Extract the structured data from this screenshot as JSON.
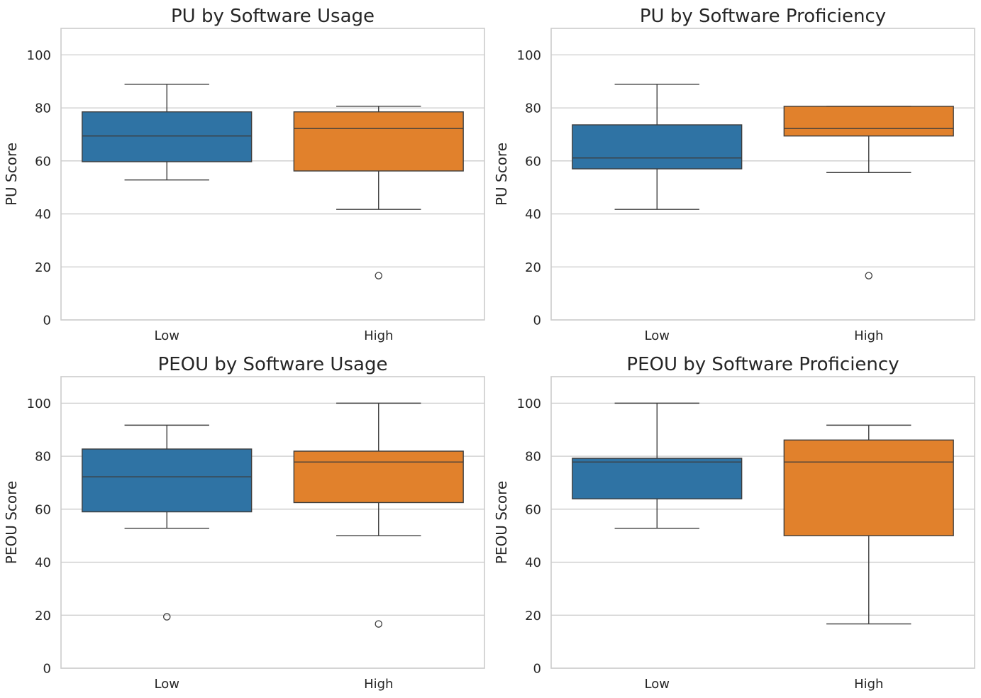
{
  "chart_data": [
    {
      "type": "box",
      "title": "PU by Software Usage",
      "xlabel": "",
      "ylabel": "PU Score",
      "ylim": [
        0,
        110
      ],
      "yticks": [
        "0",
        "20",
        "40",
        "60",
        "80",
        "100"
      ],
      "categories": [
        "Low",
        "High"
      ],
      "colors": [
        "#2f73a4",
        "#e1812c"
      ],
      "boxes": [
        {
          "whisker_low": 52.8,
          "q1": 59.7,
          "median": 69.4,
          "q3": 78.5,
          "whisker_high": 88.9,
          "outliers": []
        },
        {
          "whisker_low": 41.7,
          "q1": 56.2,
          "median": 72.2,
          "q3": 78.5,
          "whisker_high": 80.6,
          "outliers": [
            16.7
          ]
        }
      ]
    },
    {
      "type": "box",
      "title": "PU by Software Proficiency",
      "xlabel": "",
      "ylabel": "PU Score",
      "ylim": [
        0,
        110
      ],
      "yticks": [
        "0",
        "20",
        "40",
        "60",
        "80",
        "100"
      ],
      "categories": [
        "Low",
        "High"
      ],
      "colors": [
        "#2f73a4",
        "#e1812c"
      ],
      "boxes": [
        {
          "whisker_low": 41.7,
          "q1": 57.0,
          "median": 61.1,
          "q3": 73.6,
          "whisker_high": 88.9,
          "outliers": []
        },
        {
          "whisker_low": 55.6,
          "q1": 69.4,
          "median": 72.2,
          "q3": 80.6,
          "whisker_high": 80.6,
          "outliers": [
            16.7
          ]
        }
      ]
    },
    {
      "type": "box",
      "title": "PEOU by Software Usage",
      "xlabel": "",
      "ylabel": "PEOU Score",
      "ylim": [
        0,
        110
      ],
      "yticks": [
        "0",
        "20",
        "40",
        "60",
        "80",
        "100"
      ],
      "categories": [
        "Low",
        "High"
      ],
      "colors": [
        "#2f73a4",
        "#e1812c"
      ],
      "boxes": [
        {
          "whisker_low": 52.8,
          "q1": 59.0,
          "median": 72.2,
          "q3": 82.7,
          "whisker_high": 91.7,
          "outliers": [
            19.4
          ]
        },
        {
          "whisker_low": 50.0,
          "q1": 62.5,
          "median": 77.8,
          "q3": 81.9,
          "whisker_high": 100.0,
          "outliers": [
            16.7
          ]
        }
      ]
    },
    {
      "type": "box",
      "title": "PEOU by Software Proficiency",
      "xlabel": "",
      "ylabel": "PEOU Score",
      "ylim": [
        0,
        110
      ],
      "yticks": [
        "0",
        "20",
        "40",
        "60",
        "80",
        "100"
      ],
      "categories": [
        "Low",
        "High"
      ],
      "colors": [
        "#2f73a4",
        "#e1812c"
      ],
      "boxes": [
        {
          "whisker_low": 52.8,
          "q1": 63.9,
          "median": 77.8,
          "q3": 79.2,
          "whisker_high": 100.0,
          "outliers": []
        },
        {
          "whisker_low": 16.7,
          "q1": 50.0,
          "median": 77.8,
          "q3": 86.1,
          "whisker_high": 91.7,
          "outliers": []
        }
      ]
    }
  ]
}
